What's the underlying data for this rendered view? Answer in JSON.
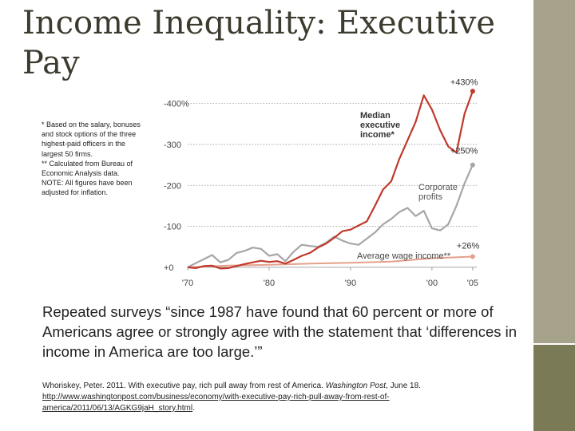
{
  "slide": {
    "title": "Income Inequality: Executive Pay",
    "notes": [
      "* Based on the salary, bonuses and stock options of the three highest-paid officers in the largest 50 firms.",
      "** Calculated from Bureau of Economic Analysis data.",
      "NOTE: All figures have been adjusted for inflation."
    ],
    "quote": "Repeated surveys “since 1987 have found that 60 percent or more of Americans agree or strongly agree with the statement that ‘differences in income in America are too large.’”",
    "citation": {
      "text_before": "Whoriskey, Peter. 2011. With executive pay, rich pull away from rest of America. ",
      "journal": "Washington Post",
      "text_after": ", June 18. ",
      "url": "http://www.washingtonpost.com/business/economy/with-executive-pay-rich-pull-away-from-rest-of-america/2011/06/13/AGKG9jaH_story.html",
      "end": "."
    }
  },
  "colors": {
    "executive": "#c0392b",
    "profits": "#a6a6a6",
    "wages": "#e5a08a",
    "sidebar": "#a6a28c",
    "sidebar_accent": "#7b7a56"
  },
  "chart_data": {
    "type": "line",
    "title": "",
    "xlim": [
      1970,
      2005.5
    ],
    "ylim": [
      -10,
      450
    ],
    "y_ticks": [
      {
        "value": 0,
        "label": "+0"
      },
      {
        "value": 100,
        "label": "-100"
      },
      {
        "value": 200,
        "label": "-200"
      },
      {
        "value": 300,
        "label": "-300"
      },
      {
        "value": 400,
        "label": "-400%"
      }
    ],
    "x_ticks": [
      {
        "value": 1970,
        "label": "'70"
      },
      {
        "value": 1980,
        "label": "'80"
      },
      {
        "value": 1990,
        "label": "'90"
      },
      {
        "value": 2000,
        "label": "'00"
      },
      {
        "value": 2005,
        "label": "'05"
      }
    ],
    "series": [
      {
        "name": "Median executive income*",
        "key": "executive",
        "end_label": "+430%",
        "x": [
          1970,
          1971,
          1972,
          1973,
          1974,
          1975,
          1976,
          1977,
          1978,
          1979,
          1980,
          1981,
          1982,
          1983,
          1984,
          1985,
          1986,
          1987,
          1988,
          1989,
          1990,
          1991,
          1992,
          1993,
          1994,
          1995,
          1996,
          1997,
          1998,
          1999,
          2000,
          2001,
          2002,
          2003,
          2004,
          2005
        ],
        "values": [
          0,
          -2,
          3,
          4,
          -3,
          -2,
          3,
          8,
          12,
          16,
          13,
          15,
          9,
          18,
          28,
          35,
          48,
          58,
          72,
          88,
          92,
          102,
          112,
          150,
          190,
          210,
          265,
          310,
          355,
          420,
          385,
          335,
          295,
          280,
          375,
          430
        ]
      },
      {
        "name": "Corporate profits",
        "key": "profits",
        "end_label": "+250%",
        "x": [
          1970,
          1971,
          1972,
          1973,
          1974,
          1975,
          1976,
          1977,
          1978,
          1979,
          1980,
          1981,
          1982,
          1983,
          1984,
          1985,
          1986,
          1987,
          1988,
          1989,
          1990,
          1991,
          1992,
          1993,
          1994,
          1995,
          1996,
          1997,
          1998,
          1999,
          2000,
          2001,
          2002,
          2003,
          2004,
          2005
        ],
        "values": [
          0,
          10,
          20,
          30,
          12,
          18,
          35,
          40,
          48,
          45,
          28,
          32,
          15,
          38,
          55,
          52,
          50,
          60,
          75,
          65,
          58,
          55,
          70,
          85,
          105,
          118,
          135,
          145,
          125,
          138,
          95,
          90,
          105,
          150,
          205,
          250
        ]
      },
      {
        "name": "Average wage income**",
        "key": "wages",
        "end_label": "+26%",
        "x": [
          1970,
          1975,
          1980,
          1985,
          1990,
          1995,
          2000,
          2005
        ],
        "values": [
          0,
          4,
          6,
          9,
          11,
          14,
          22,
          26
        ]
      }
    ],
    "annotations": [
      {
        "text": "Median executive income*",
        "lines": [
          "Median",
          "executive",
          "income*"
        ],
        "series": "executive"
      },
      {
        "text": "Corporate profits",
        "lines": [
          "Corporate",
          "profits"
        ],
        "series": "profits"
      },
      {
        "text": "Average wage income**",
        "lines": [
          "Average wage income**"
        ],
        "series": "wages"
      }
    ]
  }
}
